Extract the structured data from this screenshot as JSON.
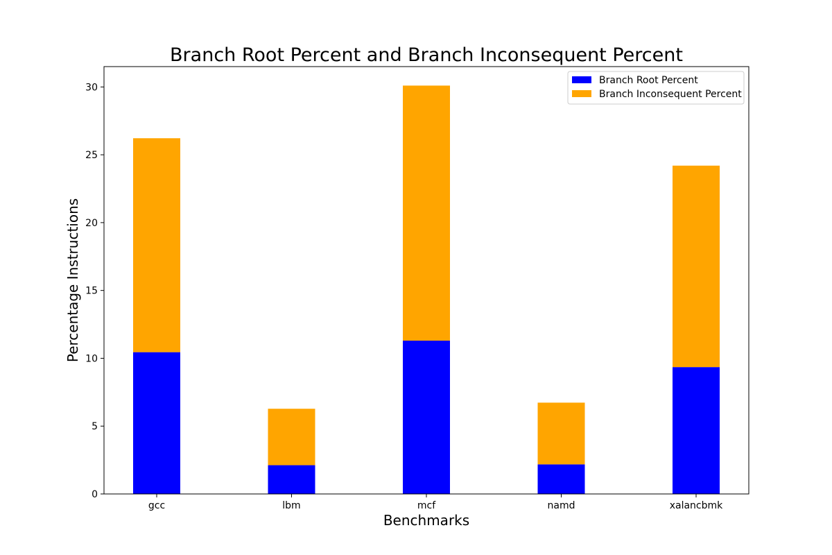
{
  "chart_data": {
    "type": "bar",
    "stacked": true,
    "title": "Branch Root Percent and Branch Inconsequent Percent",
    "xlabel": "Benchmarks",
    "ylabel": "Percentage Instructions",
    "categories": [
      "gcc",
      "lbm",
      "mcf",
      "namd",
      "xalancbmk"
    ],
    "series": [
      {
        "name": "Branch Root Percent",
        "color": "#0000ff",
        "values": [
          10.45,
          2.12,
          11.3,
          2.18,
          9.35
        ]
      },
      {
        "name": "Branch Inconsequent Percent",
        "color": "#ffa500",
        "values": [
          15.77,
          4.16,
          18.8,
          4.55,
          14.85
        ]
      }
    ],
    "ylim": [
      0,
      31.5
    ],
    "yticks": [
      0,
      5,
      10,
      15,
      20,
      25,
      30
    ],
    "grid": false,
    "legend": "top-right"
  }
}
